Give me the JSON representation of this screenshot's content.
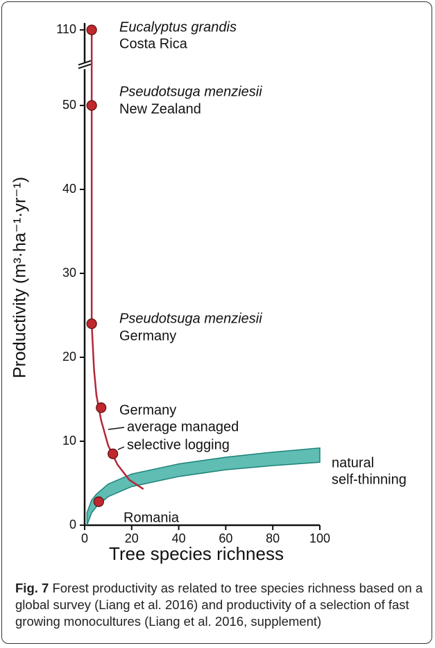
{
  "chart_data": {
    "type": "line",
    "xlabel": "Tree species richness",
    "ylabel": "Productivity (m³·ha⁻¹·yr⁻¹)",
    "xlim": [
      0,
      100
    ],
    "xticks": [
      0,
      20,
      40,
      60,
      80,
      100
    ],
    "ylim": [
      0,
      110
    ],
    "yticks": [
      0,
      10,
      20,
      30,
      40,
      50,
      110
    ],
    "y_break": [
      54,
      105
    ],
    "series": [
      {
        "type": "curve",
        "color": "#b2283a",
        "x": [
          3,
          3,
          3,
          4,
          5,
          7,
          10,
          14,
          19,
          25
        ],
        "values": [
          110,
          50,
          24,
          18.5,
          15.5,
          12.5,
          9.5,
          7.2,
          5.4,
          4.3
        ]
      },
      {
        "type": "band-lower",
        "color": "#2aa79b",
        "x": [
          1,
          3,
          5,
          10,
          20,
          40,
          60,
          80,
          100
        ],
        "values": [
          0,
          1.5,
          2.2,
          3.4,
          4.6,
          5.8,
          6.6,
          7.1,
          7.5
        ]
      },
      {
        "type": "band-upper",
        "color": "#2aa79b",
        "x": [
          1,
          3,
          5,
          10,
          20,
          40,
          60,
          80,
          100
        ],
        "values": [
          1.5,
          3,
          3.7,
          4.9,
          6.1,
          7.3,
          8.1,
          8.7,
          9.2
        ]
      },
      {
        "type": "points",
        "color": "#c0282d",
        "x": [
          3,
          3,
          3,
          7,
          12,
          6
        ],
        "values": [
          110,
          50,
          24,
          14,
          8.5,
          2.8
        ]
      }
    ],
    "annotations": [
      "Eucalyptus grandis",
      "Costa Rica",
      "Pseudotsuga menziesii",
      "New Zealand",
      "Pseudotsuga menziesii",
      "Germany",
      "Germany",
      "average managed",
      "selective logging",
      "Romania",
      "natural",
      "self-thinning"
    ],
    "caption": {
      "label": "Fig. 7",
      "text": "Forest productivity as related to tree species richness based on a global survey (Liang et al. 2016) and productivity of a selection of fast growing monocultures (Liang et al. 2016, supplement)"
    }
  }
}
